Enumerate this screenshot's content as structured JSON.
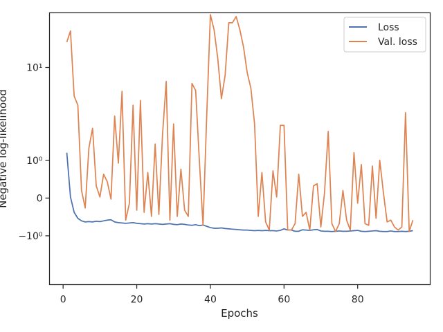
{
  "chart_data": {
    "type": "line",
    "xlabel": "Epochs",
    "ylabel": "Negative log-likelihood",
    "yscale": "symlog",
    "xlim": [
      -3.7,
      99.7
    ],
    "ylim": [
      -3.9,
      29
    ],
    "x_ticks": [
      {
        "value": 0,
        "label": "0"
      },
      {
        "value": 20,
        "label": "20"
      },
      {
        "value": 40,
        "label": "40"
      },
      {
        "value": 60,
        "label": "60"
      },
      {
        "value": 80,
        "label": "80"
      }
    ],
    "y_ticks": [
      {
        "value": -1,
        "label": "−10⁰"
      },
      {
        "value": 0,
        "label": "0"
      },
      {
        "value": 1,
        "label": "10⁰"
      },
      {
        "value": 10,
        "label": "10¹"
      }
    ],
    "legend_position": "top-right",
    "colors": {
      "loss": "#4c72b0",
      "val_loss": "#dd8452",
      "axes": "#262626"
    },
    "x": [
      1,
      2,
      3,
      4,
      5,
      6,
      7,
      8,
      9,
      10,
      11,
      12,
      13,
      14,
      15,
      16,
      17,
      18,
      19,
      20,
      21,
      22,
      23,
      24,
      25,
      26,
      27,
      28,
      29,
      30,
      31,
      32,
      33,
      34,
      35,
      36,
      37,
      38,
      39,
      40,
      41,
      42,
      43,
      44,
      45,
      46,
      47,
      48,
      49,
      50,
      51,
      52,
      53,
      54,
      55,
      56,
      57,
      58,
      59,
      60,
      61,
      62,
      63,
      64,
      65,
      66,
      67,
      68,
      69,
      70,
      71,
      72,
      73,
      74,
      75,
      76,
      77,
      78,
      79,
      80,
      81,
      82,
      83,
      84,
      85,
      86,
      87,
      88,
      89,
      90,
      91,
      92,
      93,
      94,
      95
    ],
    "series": [
      {
        "name": "Loss",
        "values": [
          1.3,
          0.02,
          -0.3,
          -0.45,
          -0.52,
          -0.55,
          -0.54,
          -0.55,
          -0.53,
          -0.54,
          -0.52,
          -0.5,
          -0.49,
          -0.55,
          -0.57,
          -0.58,
          -0.59,
          -0.58,
          -0.57,
          -0.59,
          -0.6,
          -0.61,
          -0.6,
          -0.61,
          -0.6,
          -0.61,
          -0.62,
          -0.61,
          -0.6,
          -0.62,
          -0.63,
          -0.61,
          -0.62,
          -0.64,
          -0.65,
          -0.63,
          -0.66,
          -0.64,
          -0.68,
          -0.72,
          -0.74,
          -0.74,
          -0.73,
          -0.75,
          -0.76,
          -0.77,
          -0.78,
          -0.79,
          -0.8,
          -0.8,
          -0.81,
          -0.82,
          -0.81,
          -0.82,
          -0.81,
          -0.82,
          -0.82,
          -0.83,
          -0.81,
          -0.76,
          -0.8,
          -0.8,
          -0.84,
          -0.84,
          -0.79,
          -0.8,
          -0.81,
          -0.79,
          -0.78,
          -0.83,
          -0.84,
          -0.84,
          -0.85,
          -0.84,
          -0.83,
          -0.84,
          -0.84,
          -0.83,
          -0.82,
          -0.81,
          -0.84,
          -0.85,
          -0.84,
          -0.83,
          -0.82,
          -0.84,
          -0.85,
          -0.85,
          -0.83,
          -0.85,
          -0.85,
          -0.84,
          -0.85,
          -0.84,
          -0.82
        ]
      },
      {
        "name": "Val. loss",
        "values": [
          16.5,
          20.5,
          5.5,
          4.5,
          0.15,
          -0.2,
          1.5,
          2.6,
          0.25,
          0.02,
          0.55,
          0.35,
          -0.02,
          3.5,
          0.9,
          6.1,
          -0.5,
          -0.1,
          4.5,
          -0.25,
          5.0,
          -0.3,
          0.6,
          -0.4,
          1.7,
          -0.35,
          2.2,
          7.5,
          -0.5,
          2.9,
          -0.4,
          0.7,
          -0.25,
          -0.4,
          7.2,
          6.2,
          1.0,
          -0.65,
          3.5,
          28.0,
          21.0,
          12.0,
          5.2,
          8.5,
          24.0,
          24.0,
          27.0,
          21.0,
          15.0,
          9.0,
          6.5,
          2.9,
          -0.4,
          0.6,
          -0.55,
          -0.8,
          0.65,
          0.02,
          2.8,
          2.8,
          -0.8,
          -0.8,
          -0.6,
          0.55,
          -0.4,
          -0.3,
          -0.8,
          0.25,
          0.3,
          -0.7,
          0.1,
          2.4,
          -0.6,
          -0.85,
          -0.6,
          0.15,
          -0.5,
          -0.8,
          1.3,
          -0.1,
          0.85,
          -0.6,
          -0.65,
          0.8,
          -0.45,
          1.0,
          0.1,
          -0.55,
          -0.5,
          -0.7,
          -0.8,
          -0.7,
          3.8,
          -0.85,
          -0.5
        ]
      }
    ]
  }
}
